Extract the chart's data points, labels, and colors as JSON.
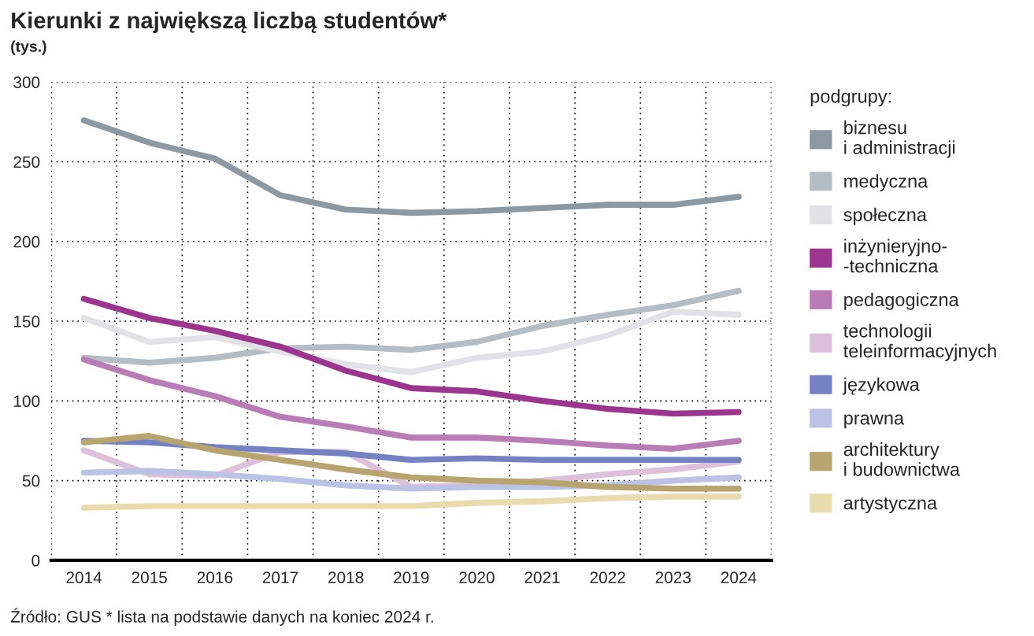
{
  "chart_data": {
    "type": "line",
    "title": "Kierunki z największą liczbą studentów*",
    "subtitle": "(tys.)",
    "annotations": [
      "Źródło: GUS * lista na podstawie danych na koniec 2024 r."
    ],
    "categories": [
      "2014",
      "2015",
      "2016",
      "2017",
      "2018",
      "2019",
      "2020",
      "2021",
      "2022",
      "2023",
      "2024"
    ],
    "ylim": [
      0,
      300
    ],
    "yticks": [
      0,
      50,
      100,
      150,
      200,
      250,
      300
    ],
    "grid": true,
    "legend": "right",
    "legend_title": "podgrupy:",
    "line_style": "solid",
    "marker": "none",
    "series": [
      {
        "name": "biznesu\ni administracji",
        "color": "#8c99a3",
        "values": [
          276,
          262,
          252,
          229,
          220,
          218,
          219,
          221,
          223,
          223,
          228
        ]
      },
      {
        "name": "medyczna",
        "color": "#b4bcc4",
        "values": [
          127,
          124,
          127,
          133,
          134,
          132,
          137,
          147,
          154,
          160,
          169
        ]
      },
      {
        "name": "społeczna",
        "color": "#e0e2e5",
        "values": [
          152,
          137,
          140,
          131,
          123,
          118,
          127,
          131,
          141,
          156,
          154
        ]
      },
      {
        "name": "inżynieryjno-\n-techniczna",
        "color": "#9b3590",
        "values": [
          164,
          152,
          144,
          134,
          119,
          108,
          106,
          100,
          95,
          92,
          93
        ]
      },
      {
        "name": "pedagogiczna",
        "color": "#b97cb6",
        "values": [
          126,
          113,
          103,
          90,
          84,
          77,
          77,
          75,
          72,
          70,
          75
        ]
      },
      {
        "name": "technologii\nteleinformacyjnych",
        "color": "#dcc0dc",
        "values": [
          69,
          54,
          53,
          68,
          68,
          46,
          47,
          50,
          54,
          57,
          62
        ]
      },
      {
        "name": "językowa",
        "color": "#7482c4",
        "values": [
          75,
          74,
          71,
          69,
          67,
          63,
          64,
          63,
          63,
          63,
          63
        ]
      },
      {
        "name": "prawna",
        "color": "#bcc2e6",
        "values": [
          55,
          56,
          54,
          51,
          47,
          45,
          46,
          46,
          47,
          50,
          52
        ]
      },
      {
        "name": "architektury\ni budownictwa",
        "color": "#b8a46e",
        "values": [
          74,
          78,
          69,
          63,
          57,
          52,
          50,
          49,
          46,
          45,
          45
        ]
      },
      {
        "name": "artystyczna",
        "color": "#eadbae",
        "values": [
          33,
          34,
          34,
          34,
          34,
          34,
          36,
          37,
          39,
          40,
          40
        ]
      }
    ]
  }
}
